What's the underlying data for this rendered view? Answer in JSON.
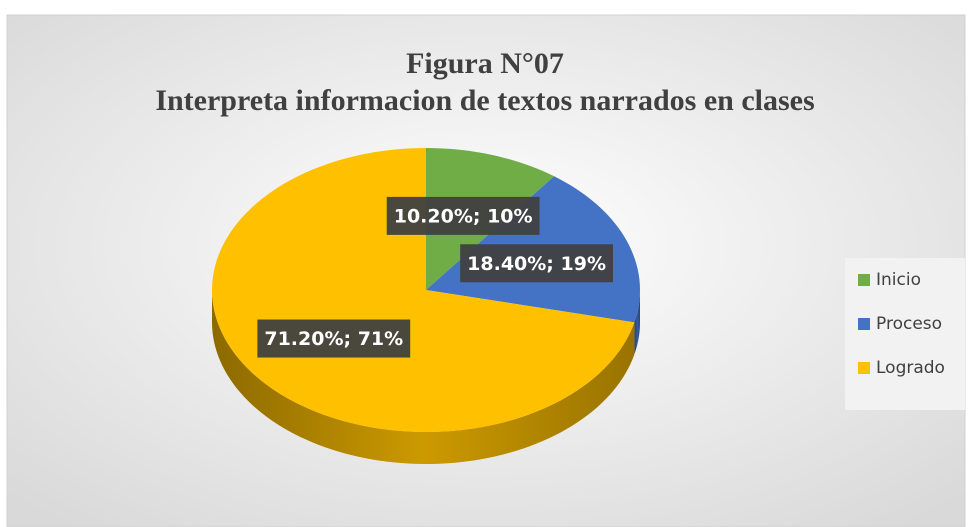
{
  "chart_data": {
    "type": "pie",
    "title": "Figura N°07",
    "subtitle": "Interpreta informacion de textos narrados en clases",
    "categories": [
      "Inicio",
      "Proceso",
      "Logrado"
    ],
    "values": [
      10.2,
      18.4,
      71.2
    ],
    "value_labels": [
      "10.20%; 10%",
      "18.40%; 19%",
      "71.20%; 71%"
    ],
    "colors": [
      "#70ad47",
      "#4472c4",
      "#ffc000"
    ],
    "legend": "right"
  }
}
